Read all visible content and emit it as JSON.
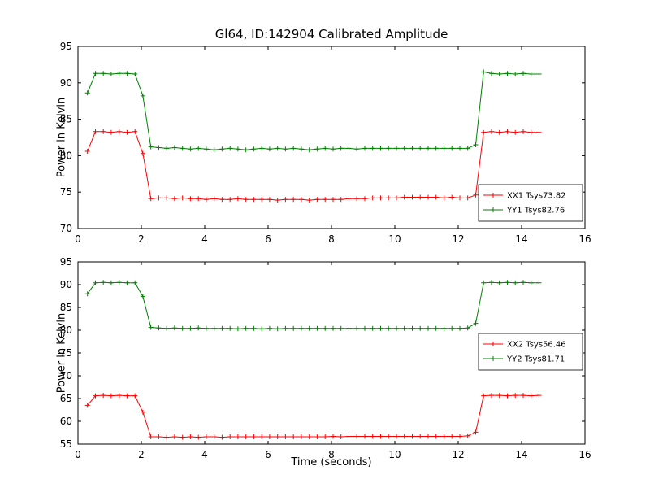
{
  "title": "Gl64, ID:142904 Calibrated Amplitude",
  "figure": {
    "background": "#ffffff",
    "frame_color": "#000000",
    "text_color": "#000000"
  },
  "chart_data": [
    {
      "type": "line",
      "subplot": "top",
      "ylabel": "Power in Kelvin",
      "xlabel": "",
      "xlim": [
        0,
        16
      ],
      "ylim": [
        70,
        95
      ],
      "xticks": [
        0,
        2,
        4,
        6,
        8,
        10,
        12,
        14,
        16
      ],
      "yticks": [
        70,
        75,
        80,
        85,
        90,
        95
      ],
      "grid": false,
      "legend_position": "lower right",
      "marker": "+",
      "x": [
        0.3,
        0.55,
        0.8,
        1.05,
        1.3,
        1.55,
        1.8,
        2.05,
        2.3,
        2.55,
        2.8,
        3.05,
        3.3,
        3.55,
        3.8,
        4.05,
        4.3,
        4.55,
        4.8,
        5.05,
        5.3,
        5.55,
        5.8,
        6.05,
        6.3,
        6.55,
        6.8,
        7.05,
        7.3,
        7.55,
        7.8,
        8.05,
        8.3,
        8.55,
        8.8,
        9.05,
        9.3,
        9.55,
        9.8,
        10.05,
        10.3,
        10.55,
        10.8,
        11.05,
        11.3,
        11.55,
        11.8,
        12.05,
        12.3,
        12.55,
        12.8,
        13.05,
        13.3,
        13.55,
        13.8,
        14.05,
        14.3,
        14.55
      ],
      "series": [
        {
          "name": "XX1 Tsys73.82",
          "color": "#ff0000",
          "values": [
            80.6,
            83.3,
            83.3,
            83.2,
            83.3,
            83.2,
            83.3,
            80.3,
            74.1,
            74.2,
            74.2,
            74.1,
            74.2,
            74.1,
            74.1,
            74.0,
            74.1,
            74.0,
            74.0,
            74.1,
            74.0,
            74.0,
            74.0,
            74.0,
            73.9,
            74.0,
            74.0,
            74.0,
            73.9,
            74.0,
            74.0,
            74.0,
            74.0,
            74.1,
            74.1,
            74.1,
            74.2,
            74.2,
            74.2,
            74.2,
            74.3,
            74.3,
            74.3,
            74.3,
            74.3,
            74.2,
            74.3,
            74.2,
            74.2,
            74.6,
            83.2,
            83.3,
            83.2,
            83.3,
            83.2,
            83.3,
            83.2,
            83.2
          ]
        },
        {
          "name": "YY1 Tsys82.76",
          "color": "#008000",
          "values": [
            88.6,
            91.3,
            91.3,
            91.2,
            91.3,
            91.3,
            91.2,
            88.2,
            81.2,
            81.1,
            81.0,
            81.1,
            81.0,
            80.9,
            81.0,
            80.9,
            80.8,
            80.9,
            81.0,
            80.9,
            80.8,
            80.9,
            81.0,
            80.9,
            81.0,
            80.9,
            81.0,
            80.9,
            80.8,
            80.9,
            81.0,
            80.9,
            81.0,
            81.0,
            80.9,
            81.0,
            81.0,
            81.0,
            81.0,
            81.0,
            81.0,
            81.0,
            81.0,
            81.0,
            81.0,
            81.0,
            81.0,
            81.0,
            81.0,
            81.5,
            91.5,
            91.3,
            91.2,
            91.3,
            91.2,
            91.3,
            91.2,
            91.2
          ]
        }
      ]
    },
    {
      "type": "line",
      "subplot": "bottom",
      "ylabel": "Power in Kelvin",
      "xlabel": "Time (seconds)",
      "xlim": [
        0,
        16
      ],
      "ylim": [
        55,
        95
      ],
      "xticks": [
        0,
        2,
        4,
        6,
        8,
        10,
        12,
        14,
        16
      ],
      "yticks": [
        55,
        60,
        65,
        70,
        75,
        80,
        85,
        90,
        95
      ],
      "grid": false,
      "legend_position": "center right",
      "marker": "+",
      "x": [
        0.3,
        0.55,
        0.8,
        1.05,
        1.3,
        1.55,
        1.8,
        2.05,
        2.3,
        2.55,
        2.8,
        3.05,
        3.3,
        3.55,
        3.8,
        4.05,
        4.3,
        4.55,
        4.8,
        5.05,
        5.3,
        5.55,
        5.8,
        6.05,
        6.3,
        6.55,
        6.8,
        7.05,
        7.3,
        7.55,
        7.8,
        8.05,
        8.3,
        8.55,
        8.8,
        9.05,
        9.3,
        9.55,
        9.8,
        10.05,
        10.3,
        10.55,
        10.8,
        11.05,
        11.3,
        11.55,
        11.8,
        12.05,
        12.3,
        12.55,
        12.8,
        13.05,
        13.3,
        13.55,
        13.8,
        14.05,
        14.3,
        14.55
      ],
      "series": [
        {
          "name": "XX2 Tsys56.46",
          "color": "#ff0000",
          "values": [
            63.5,
            65.6,
            65.7,
            65.6,
            65.7,
            65.6,
            65.6,
            62.0,
            56.6,
            56.6,
            56.5,
            56.6,
            56.5,
            56.6,
            56.5,
            56.6,
            56.6,
            56.5,
            56.6,
            56.6,
            56.6,
            56.6,
            56.6,
            56.6,
            56.6,
            56.6,
            56.6,
            56.6,
            56.6,
            56.6,
            56.6,
            56.7,
            56.6,
            56.7,
            56.7,
            56.7,
            56.7,
            56.7,
            56.7,
            56.7,
            56.7,
            56.7,
            56.7,
            56.7,
            56.7,
            56.7,
            56.7,
            56.7,
            56.8,
            57.6,
            65.6,
            65.7,
            65.7,
            65.6,
            65.7,
            65.7,
            65.6,
            65.7
          ]
        },
        {
          "name": "YY2 Tsys81.71",
          "color": "#008000",
          "values": [
            88.0,
            90.4,
            90.5,
            90.4,
            90.5,
            90.4,
            90.4,
            87.4,
            80.6,
            80.5,
            80.4,
            80.5,
            80.4,
            80.4,
            80.5,
            80.4,
            80.4,
            80.4,
            80.4,
            80.3,
            80.4,
            80.4,
            80.3,
            80.4,
            80.3,
            80.4,
            80.4,
            80.4,
            80.4,
            80.4,
            80.4,
            80.4,
            80.4,
            80.4,
            80.4,
            80.4,
            80.4,
            80.4,
            80.4,
            80.4,
            80.4,
            80.4,
            80.4,
            80.4,
            80.4,
            80.4,
            80.4,
            80.4,
            80.5,
            81.5,
            90.4,
            90.5,
            90.4,
            90.5,
            90.4,
            90.5,
            90.4,
            90.4
          ]
        }
      ]
    }
  ]
}
